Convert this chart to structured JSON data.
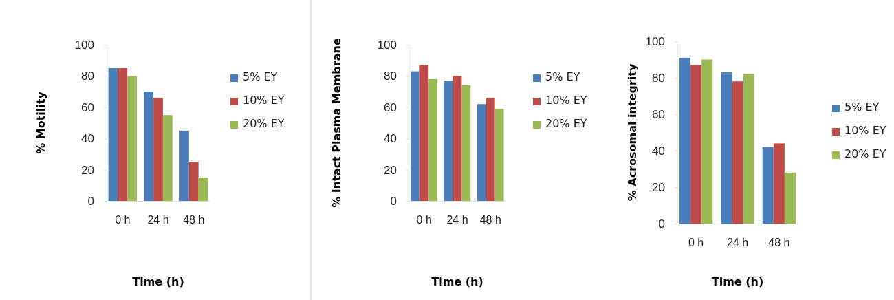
{
  "chart_data": [
    {
      "type": "bar",
      "xlabel": "Time (h)",
      "ylabel": "% Motility",
      "categories": [
        "0 h",
        "24 h",
        "48 h"
      ],
      "ylim": [
        0,
        100
      ],
      "yticks": [
        0,
        20,
        40,
        60,
        80,
        100
      ],
      "grid": false,
      "legend": "right",
      "series": [
        {
          "name": "5% EY",
          "color": "#4a7ebb",
          "values": [
            85,
            70,
            45
          ]
        },
        {
          "name": "10% EY",
          "color": "#be4b48",
          "values": [
            85,
            66,
            25
          ]
        },
        {
          "name": "20% EY",
          "color": "#98b954",
          "values": [
            80,
            55,
            15
          ]
        }
      ]
    },
    {
      "type": "bar",
      "xlabel": "Time (h)",
      "ylabel": "% Intact Plasma Membrane",
      "categories": [
        "0 h",
        "24 h",
        "48 h"
      ],
      "ylim": [
        0,
        100
      ],
      "yticks": [
        0,
        20,
        40,
        60,
        80,
        100
      ],
      "grid": false,
      "legend": "right",
      "series": [
        {
          "name": "5% EY",
          "color": "#4a7ebb",
          "values": [
            83,
            77,
            62
          ]
        },
        {
          "name": "10% EY",
          "color": "#be4b48",
          "values": [
            87,
            80,
            66
          ]
        },
        {
          "name": "20% EY",
          "color": "#98b954",
          "values": [
            78,
            74,
            59
          ]
        }
      ]
    },
    {
      "type": "bar",
      "xlabel": "Time (h)",
      "ylabel": "% Acrosomal integrity",
      "categories": [
        "0 h",
        "24 h",
        "48 h"
      ],
      "ylim": [
        0,
        100
      ],
      "yticks": [
        0,
        20,
        40,
        60,
        80,
        100
      ],
      "grid": false,
      "legend": "right",
      "series": [
        {
          "name": "5% EY",
          "color": "#4a7ebb",
          "values": [
            91,
            83,
            42
          ]
        },
        {
          "name": "10% EY",
          "color": "#be4b48",
          "values": [
            87,
            78,
            44
          ]
        },
        {
          "name": "20% EY",
          "color": "#98b954",
          "values": [
            90,
            82,
            28
          ]
        }
      ]
    }
  ]
}
